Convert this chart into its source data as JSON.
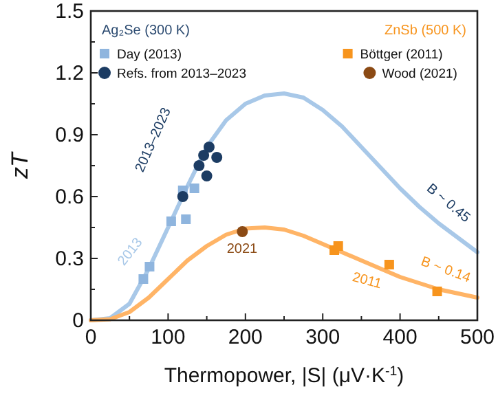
{
  "chart_data": {
    "type": "scatter",
    "xlabel": "Thermopower, |S| (μV·K$^{-1}$)",
    "ylabel": "zT",
    "xlim": [
      0,
      500
    ],
    "ylim": [
      0,
      1.5
    ],
    "xticks": [
      0,
      {
        "value": 50,
        "label": null
      },
      100,
      {
        "value": 150,
        "label": null
      },
      200,
      {
        "value": 250,
        "label": null
      },
      300,
      {
        "value": 350,
        "label": null
      },
      400,
      {
        "value": 450,
        "label": null
      },
      500
    ],
    "yticks": [
      0,
      {
        "value": 0.15,
        "label": null
      },
      0.3,
      {
        "value": 0.45,
        "label": null
      },
      0.6,
      {
        "value": 0.75,
        "label": null
      },
      0.9,
      {
        "value": 1.05,
        "label": null
      },
      1.2,
      {
        "value": 1.35,
        "label": null
      },
      1.5
    ],
    "legend": "top",
    "grid": false,
    "series": [
      {
        "type": "line",
        "color": "#a8c8e8",
        "x": [
          0,
          25,
          50,
          75,
          100,
          125,
          150,
          175,
          200,
          225,
          250,
          275,
          300,
          325,
          350,
          375,
          400,
          425,
          450,
          475,
          500
        ],
        "values": [
          0,
          0.01,
          0.08,
          0.25,
          0.45,
          0.65,
          0.84,
          0.97,
          1.05,
          1.09,
          1.1,
          1.08,
          1.02,
          0.94,
          0.84,
          0.74,
          0.64,
          0.55,
          0.47,
          0.4,
          0.33
        ]
      },
      {
        "type": "line",
        "color": "#ffb466",
        "x": [
          0,
          25,
          50,
          75,
          100,
          125,
          150,
          175,
          200,
          225,
          250,
          275,
          300,
          325,
          350,
          375,
          400,
          425,
          450,
          475,
          500
        ],
        "values": [
          0,
          0.005,
          0.04,
          0.11,
          0.2,
          0.29,
          0.36,
          0.415,
          0.445,
          0.45,
          0.44,
          0.41,
          0.37,
          0.33,
          0.29,
          0.25,
          0.21,
          0.18,
          0.15,
          0.13,
          0.11
        ]
      },
      {
        "name": "Day (2013)",
        "color": "#8fb5de",
        "marker": "square",
        "x": [
          68,
          76,
          104,
          123,
          119,
          134
        ],
        "values": [
          0.2,
          0.26,
          0.48,
          0.49,
          0.63,
          0.64
        ]
      },
      {
        "name": "Refs. from 2013–2023",
        "color": "#1c3c63",
        "marker": "circle",
        "x": [
          119,
          140,
          146,
          153,
          150,
          163
        ],
        "values": [
          0.6,
          0.75,
          0.8,
          0.84,
          0.7,
          0.79
        ]
      },
      {
        "name": "Böttger (2011)",
        "color": "#f7941d",
        "marker": "square",
        "x": [
          315,
          320,
          386,
          448
        ],
        "values": [
          0.34,
          0.36,
          0.27,
          0.14
        ]
      },
      {
        "name": "Wood (2021)",
        "color": "#8b4a14",
        "marker": "circle",
        "x": [
          196
        ],
        "values": [
          0.43
        ]
      }
    ],
    "annotations": [
      "Ag₂Se (300 K)",
      "ZnSb (500 K)",
      "2013",
      "2013–2023",
      "B ~ 0.45",
      "2011",
      "B ~ 0.14",
      "2021"
    ]
  }
}
